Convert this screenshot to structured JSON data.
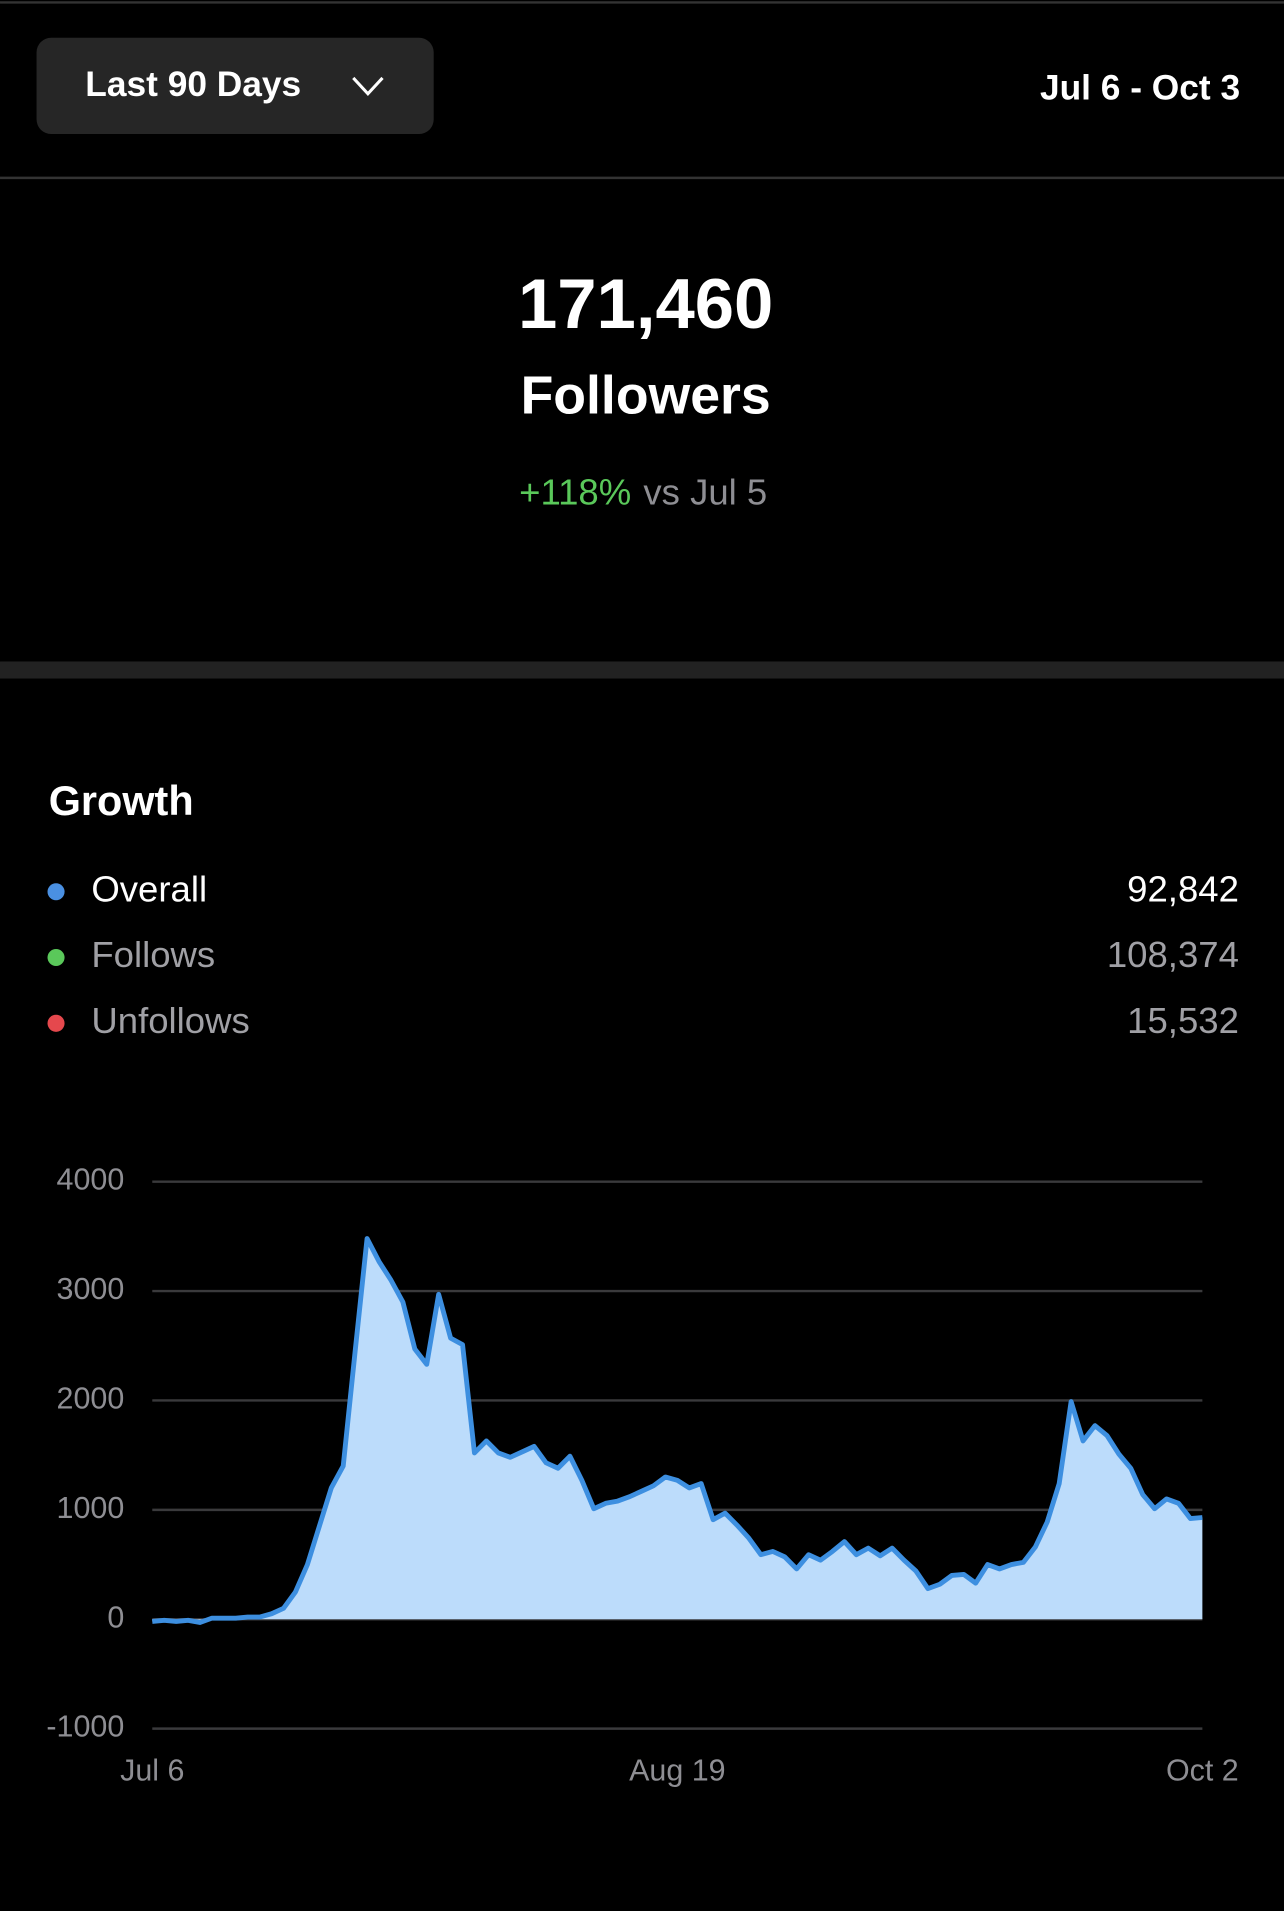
{
  "header": {
    "range_button": "Last 90 Days",
    "date_range": "Jul 6 - Oct 3"
  },
  "summary": {
    "count": "171,460",
    "label": "Followers",
    "change": "+118%",
    "comparison": "vs Jul 5"
  },
  "growth": {
    "title": "Growth",
    "legend": [
      {
        "name": "Overall",
        "value": "92,842",
        "color": "#4a90e2"
      },
      {
        "name": "Follows",
        "value": "108,374",
        "color": "#5ac85a"
      },
      {
        "name": "Unfollows",
        "value": "15,532",
        "color": "#e5484d"
      }
    ]
  },
  "chart_data": {
    "type": "area",
    "categories": [
      "Jul 6",
      null,
      null,
      null,
      null,
      null,
      null,
      null,
      null,
      null,
      null,
      null,
      null,
      null,
      null,
      null,
      null,
      null,
      null,
      null,
      null,
      null,
      null,
      null,
      null,
      null,
      null,
      null,
      null,
      null,
      null,
      null,
      null,
      null,
      null,
      null,
      null,
      null,
      null,
      null,
      null,
      null,
      null,
      null,
      "Aug 19",
      null,
      null,
      null,
      null,
      null,
      null,
      null,
      null,
      null,
      null,
      null,
      null,
      null,
      null,
      null,
      null,
      null,
      null,
      null,
      null,
      null,
      null,
      null,
      null,
      null,
      null,
      null,
      null,
      null,
      null,
      null,
      null,
      null,
      null,
      null,
      null,
      null,
      null,
      null,
      null,
      null,
      null,
      null,
      "Oct 2"
    ],
    "values": [
      -20,
      -10,
      -20,
      -10,
      -30,
      10,
      10,
      10,
      20,
      20,
      50,
      100,
      250,
      500,
      850,
      1200,
      1400,
      2450,
      3480,
      3270,
      3100,
      2900,
      2470,
      2330,
      2970,
      2570,
      2510,
      1520,
      1630,
      1520,
      1480,
      1530,
      1580,
      1430,
      1380,
      1490,
      1270,
      1010,
      1060,
      1080,
      1120,
      1170,
      1220,
      1300,
      1270,
      1200,
      1240,
      910,
      970,
      860,
      740,
      590,
      620,
      570,
      460,
      590,
      540,
      620,
      710,
      590,
      650,
      580,
      650,
      540,
      440,
      280,
      320,
      400,
      410,
      330,
      500,
      460,
      500,
      520,
      660,
      890,
      1240,
      1990,
      1630,
      1770,
      1680,
      1510,
      1380,
      1140,
      1010,
      1100,
      1060,
      920,
      930
    ],
    "color": "#3d8fe0",
    "fill_color": "#bcdcfb",
    "ylim": [
      -1000,
      4000
    ],
    "yticks": [
      -1000,
      0,
      1000,
      2000,
      3000,
      4000
    ],
    "grid": true
  }
}
